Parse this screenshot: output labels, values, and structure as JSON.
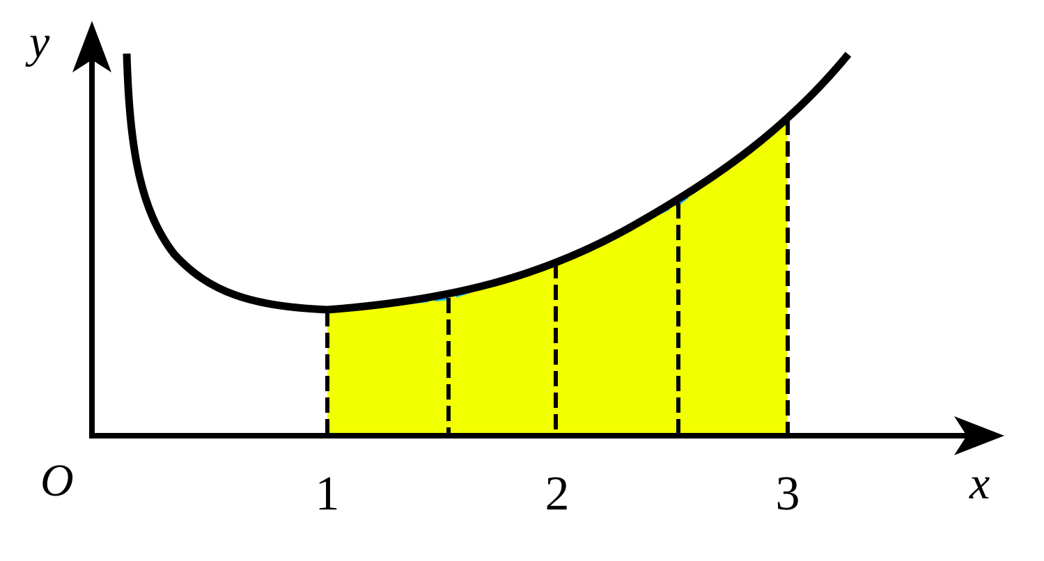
{
  "axes": {
    "x_label": "x",
    "y_label": "y",
    "origin_label": "O",
    "x_ticks": [
      "1",
      "2",
      "3"
    ]
  },
  "colors": {
    "curve": "#000000",
    "axes": "#000000",
    "fill": "#f2ff00",
    "trapezoid_top": "#17b8f0",
    "dashes": "#000000"
  },
  "partition": {
    "interval": [
      1,
      3
    ],
    "subdivisions": 4,
    "points": [
      1,
      1.5,
      2,
      2.5,
      3
    ]
  }
}
